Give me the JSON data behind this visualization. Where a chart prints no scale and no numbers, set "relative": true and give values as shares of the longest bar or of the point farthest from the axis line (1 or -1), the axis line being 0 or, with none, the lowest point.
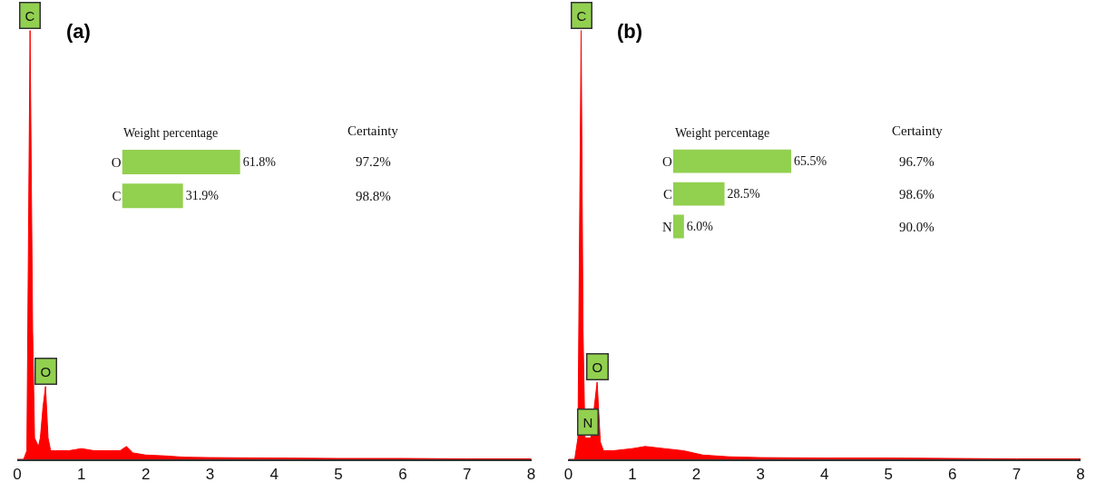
{
  "chart_data": [
    {
      "type": "area",
      "title": "(a)",
      "relative": true,
      "color": "#ff0000",
      "xlim": [
        0,
        8
      ],
      "xticks": [
        0,
        1,
        2,
        3,
        4,
        5,
        6,
        7,
        8
      ],
      "x": [
        0,
        0.1,
        0.15,
        0.2,
        0.24,
        0.27,
        0.3,
        0.33,
        0.36,
        0.4,
        0.44,
        0.48,
        0.52,
        0.6,
        0.8,
        1.0,
        1.2,
        1.4,
        1.6,
        1.7,
        1.8,
        2.0,
        2.3,
        2.6,
        3.0,
        4.0,
        5.0,
        6.0,
        7.0,
        8.0
      ],
      "values": [
        0,
        0,
        0.02,
        1,
        0.3,
        0.05,
        0.04,
        0.03,
        0.05,
        0.12,
        0.17,
        0.05,
        0.02,
        0.02,
        0.02,
        0.025,
        0.02,
        0.02,
        0.02,
        0.03,
        0.015,
        0.01,
        0.008,
        0.005,
        0.004,
        0.003,
        0.002,
        0.002,
        0.001,
        0.001
      ],
      "annotations": [
        {
          "text": "C",
          "x": 0.2,
          "y": 1
        },
        {
          "text": "O",
          "x": 0.44,
          "y": 0.17
        }
      ]
    },
    {
      "type": "bar",
      "orientation": "horizontal",
      "title": "Weight percentage",
      "color": "#92d050",
      "categories": [
        "O",
        "C"
      ],
      "values": [
        61.8,
        31.9
      ],
      "value_labels": [
        "61.8%",
        "31.9%"
      ],
      "annotations": [
        "Certainty",
        "97.2%",
        "98.8%"
      ]
    },
    {
      "type": "area",
      "title": "(b)",
      "relative": true,
      "color": "#ff0000",
      "xlim": [
        0,
        8
      ],
      "xticks": [
        0,
        1,
        2,
        3,
        4,
        5,
        6,
        7,
        8
      ],
      "x": [
        0,
        0.1,
        0.15,
        0.2,
        0.23,
        0.26,
        0.3,
        0.35,
        0.45,
        0.5,
        0.55,
        0.7,
        1.0,
        1.2,
        1.5,
        1.8,
        2.1,
        2.5,
        3.0,
        4.0,
        5.0,
        6.0,
        7.0,
        8.0
      ],
      "values": [
        0,
        0,
        0.05,
        1,
        0.3,
        0.05,
        0.05,
        0.05,
        0.18,
        0.04,
        0.02,
        0.02,
        0.025,
        0.03,
        0.025,
        0.02,
        0.01,
        0.006,
        0.004,
        0.003,
        0.003,
        0.002,
        0.001,
        0.001
      ],
      "annotations": [
        {
          "text": "C",
          "x": 0.2,
          "y": 1
        },
        {
          "text": "O",
          "x": 0.45,
          "y": 0.18
        },
        {
          "text": "N",
          "x": 0.3,
          "y": 0.05
        }
      ]
    },
    {
      "type": "bar",
      "orientation": "horizontal",
      "title": "Weight percentage",
      "color": "#92d050",
      "categories": [
        "O",
        "C",
        "N"
      ],
      "values": [
        65.5,
        28.5,
        6.0
      ],
      "value_labels": [
        "65.5%",
        "28.5%",
        "6.0%"
      ],
      "annotations": [
        "Certainty",
        "96.7%",
        "98.6%",
        "90.0%"
      ]
    }
  ]
}
